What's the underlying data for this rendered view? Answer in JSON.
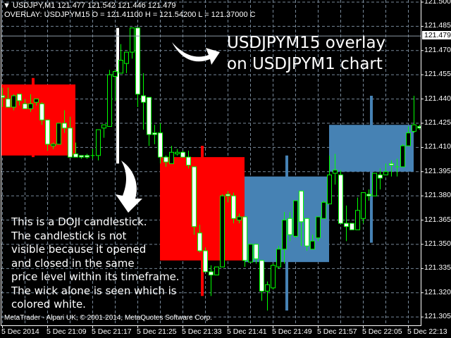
{
  "header": {
    "symbol_line": "USDJPY,M1  121.477 121.542 121.446 121.479",
    "overlay_line": "OVERLAY: USDJPYM15 O = 121.41100 H = 121.54200 L = 121.37000 C"
  },
  "annotations": {
    "overlay_title": [
      "USDJPYM15 overlay",
      "on USDJPYM1 chart"
    ],
    "doji_note": [
      "This is a DOJI candlestick.",
      "The candlestick is not",
      "visible because it opened",
      "and closed in the same",
      "price level within its timeframe.",
      "The wick alone is seen which is",
      "colored white."
    ]
  },
  "copyright": "MetaTrader - Alpari UK, © 2001-2014, MetaQuotes Software Corp.",
  "colors": {
    "background": "#000000",
    "grid": "#778899",
    "candle_outline": "#00ff00",
    "bull_body": "#000000",
    "bear_body": "#ffffff",
    "overlay_bear": "#ff0000",
    "overlay_bull": "#4682b4",
    "overlay_doji_wick": "#ffffff",
    "bid_line": "#8c99a6"
  },
  "chart_data": {
    "type": "candlestick",
    "symbol": "USDJPY",
    "timeframe": "M1",
    "overlay_timeframe": "M15",
    "ylim": [
      121.305,
      121.5
    ],
    "grid": true,
    "y_ticks": [
      "121.500",
      "121.485",
      "121.470",
      "121.455",
      "121.440",
      "121.425",
      "121.410",
      "121.395",
      "121.380",
      "121.365",
      "121.350",
      "121.335",
      "121.320",
      "121.305"
    ],
    "bid_price": "121.479",
    "x_tick_labels": [
      "5 Dec 2014",
      "5 Dec 21:09",
      "5 Dec 21:17",
      "5 Dec 21:25",
      "5 Dec 21:33",
      "5 Dec 21:41",
      "5 Dec 21:49",
      "5 Dec 21:57",
      "5 Dec 22:05",
      "5 Dec 22:13"
    ],
    "x_tick_times": [
      "21:01",
      "21:09",
      "21:17",
      "21:25",
      "21:33",
      "21:41",
      "21:49",
      "21:57",
      "22:05",
      "22:13"
    ],
    "candle_fields": [
      "time",
      "open",
      "high",
      "low",
      "close"
    ],
    "candles": [
      [
        "21:01",
        121.442,
        121.447,
        121.435,
        121.441
      ],
      [
        "21:02",
        121.44,
        121.447,
        121.435,
        121.435
      ],
      [
        "21:03",
        121.435,
        121.443,
        121.433,
        121.442
      ],
      [
        "21:04",
        121.443,
        121.443,
        121.436,
        121.439
      ],
      [
        "21:05",
        121.437,
        121.44,
        121.434,
        121.434
      ],
      [
        "21:06",
        121.434,
        121.443,
        121.432,
        121.437
      ],
      [
        "21:07",
        121.438,
        121.44,
        121.436,
        121.44
      ],
      [
        "21:08",
        121.437,
        121.438,
        121.424,
        121.427
      ],
      [
        "21:09",
        121.427,
        121.427,
        121.408,
        121.412
      ],
      [
        "21:10",
        121.411,
        121.413,
        121.409,
        121.412
      ],
      [
        "21:11",
        121.412,
        121.425,
        121.412,
        121.425
      ],
      [
        "21:12",
        121.425,
        121.433,
        121.419,
        121.422
      ],
      [
        "21:13",
        121.422,
        121.429,
        121.404,
        121.404
      ],
      [
        "21:14",
        121.406,
        121.413,
        121.404,
        121.404
      ],
      [
        "21:15",
        121.405,
        121.405,
        121.403,
        121.404
      ],
      [
        "21:16",
        121.405,
        121.406,
        121.403,
        121.404
      ],
      [
        "21:17",
        121.405,
        121.409,
        121.403,
        121.405
      ],
      [
        "21:18",
        121.405,
        121.421,
        121.402,
        121.421
      ],
      [
        "21:19",
        121.422,
        121.424,
        121.416,
        121.424
      ],
      [
        "21:20",
        121.423,
        121.458,
        121.423,
        121.455
      ],
      [
        "21:21",
        121.454,
        121.458,
        121.439,
        121.457
      ],
      [
        "21:22",
        121.456,
        121.474,
        121.456,
        121.464
      ],
      [
        "21:23",
        121.462,
        121.469,
        121.456,
        121.469
      ],
      [
        "21:24",
        121.469,
        121.484,
        121.465,
        121.484
      ],
      [
        "21:25",
        121.484,
        121.484,
        121.435,
        121.443
      ],
      [
        "21:26",
        121.442,
        121.456,
        121.421,
        121.438
      ],
      [
        "21:27",
        121.441,
        121.441,
        121.411,
        121.418
      ],
      [
        "21:28",
        121.419,
        121.424,
        121.412,
        121.418
      ],
      [
        "21:29",
        121.419,
        121.425,
        121.4,
        121.404
      ],
      [
        "21:30",
        121.404,
        121.405,
        121.398,
        121.401
      ],
      [
        "21:31",
        121.4,
        121.411,
        121.4,
        121.407
      ],
      [
        "21:32",
        121.406,
        121.409,
        121.405,
        121.407
      ],
      [
        "21:33",
        121.407,
        121.408,
        121.404,
        121.404
      ],
      [
        "21:34",
        121.404,
        121.408,
        121.397,
        121.399
      ],
      [
        "21:35",
        121.398,
        121.398,
        121.356,
        121.361
      ],
      [
        "21:36",
        121.357,
        121.362,
        121.345,
        121.346
      ],
      [
        "21:37",
        121.346,
        121.348,
        121.333,
        121.333
      ],
      [
        "21:38",
        121.333,
        121.337,
        121.318,
        121.331
      ],
      [
        "21:39",
        121.331,
        121.336,
        121.331,
        121.336
      ],
      [
        "21:40",
        121.336,
        121.381,
        121.336,
        121.38
      ],
      [
        "21:41",
        121.381,
        121.383,
        121.376,
        121.38
      ],
      [
        "21:42",
        121.38,
        121.382,
        121.363,
        121.366
      ],
      [
        "21:43",
        121.365,
        121.369,
        121.363,
        121.367
      ],
      [
        "21:44",
        121.367,
        121.367,
        121.336,
        121.34
      ],
      [
        "21:45",
        121.339,
        121.35,
        121.339,
        121.35
      ],
      [
        "21:46",
        121.35,
        121.35,
        121.338,
        121.341
      ],
      [
        "21:47",
        121.34,
        121.34,
        121.315,
        121.321
      ],
      [
        "21:48",
        121.321,
        121.327,
        121.309,
        121.325
      ],
      [
        "21:49",
        121.323,
        121.338,
        121.322,
        121.337
      ],
      [
        "21:50",
        121.336,
        121.349,
        121.335,
        121.347
      ],
      [
        "21:51",
        121.347,
        121.37,
        121.338,
        121.365
      ],
      [
        "21:52",
        121.366,
        121.37,
        121.352,
        121.356
      ],
      [
        "21:53",
        121.355,
        121.377,
        121.354,
        121.377
      ],
      [
        "21:54",
        121.383,
        121.383,
        121.349,
        121.364
      ],
      [
        "21:55",
        121.366,
        121.366,
        121.346,
        121.349
      ],
      [
        "21:56",
        121.347,
        121.356,
        121.347,
        121.352
      ],
      [
        "21:57",
        121.354,
        121.367,
        121.352,
        121.367
      ],
      [
        "21:58",
        121.366,
        121.377,
        121.366,
        121.376
      ],
      [
        "21:59",
        121.375,
        121.405,
        121.375,
        121.393
      ],
      [
        "22:00",
        121.394,
        121.406,
        121.387,
        121.396
      ],
      [
        "22:01",
        121.393,
        121.396,
        121.363,
        121.363
      ],
      [
        "22:02",
        121.363,
        121.374,
        121.352,
        121.361
      ],
      [
        "22:03",
        121.363,
        121.363,
        121.359,
        121.359
      ],
      [
        "22:04",
        121.359,
        121.379,
        121.359,
        121.371
      ],
      [
        "22:05",
        121.366,
        121.382,
        121.363,
        121.382
      ],
      [
        "22:06",
        121.381,
        121.384,
        121.377,
        121.38
      ],
      [
        "22:07",
        121.38,
        121.394,
        121.38,
        121.394
      ],
      [
        "22:08",
        121.393,
        121.397,
        121.384,
        121.391
      ],
      [
        "22:09",
        121.393,
        121.4,
        121.393,
        121.395
      ],
      [
        "22:10",
        121.4,
        121.402,
        121.392,
        121.399
      ],
      [
        "22:11",
        121.398,
        121.403,
        121.392,
        121.398
      ],
      [
        "22:12",
        121.398,
        121.412,
        121.398,
        121.411
      ],
      [
        "22:13",
        121.411,
        121.423,
        121.411,
        121.419
      ],
      [
        "22:14",
        121.42,
        121.442,
        121.419,
        121.424
      ],
      [
        "22:15",
        121.423,
        121.424,
        121.421,
        121.422
      ]
    ],
    "overlay_candles": [
      [
        "21:00",
        121.449,
        121.453,
        121.404,
        121.405
      ],
      [
        "21:15",
        121.404,
        121.484,
        121.4,
        121.404
      ],
      [
        "21:30",
        121.404,
        121.411,
        121.318,
        121.34
      ],
      [
        "21:45",
        121.339,
        121.405,
        121.309,
        121.392
      ],
      [
        "22:00",
        121.395,
        121.442,
        121.351,
        121.424
      ]
    ]
  }
}
